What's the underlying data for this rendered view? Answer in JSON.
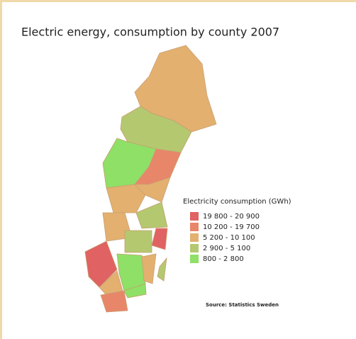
{
  "title": "Electric energy,  consumption by county 2007",
  "legend": {
    "title": "Electricity consumption  (GWh)",
    "items": [
      {
        "label": "19 800 - 20 900",
        "color": "#e06262"
      },
      {
        "label": "10 200 - 19 700",
        "color": "#e8866a"
      },
      {
        "label": "5 200 - 10 100",
        "color": "#e3b070"
      },
      {
        "label": "2 900 -   5 100",
        "color": "#b4c870"
      },
      {
        "label": "800 -   2 800",
        "color": "#8ee066"
      }
    ]
  },
  "source": "Source: Statistics Sweden"
}
